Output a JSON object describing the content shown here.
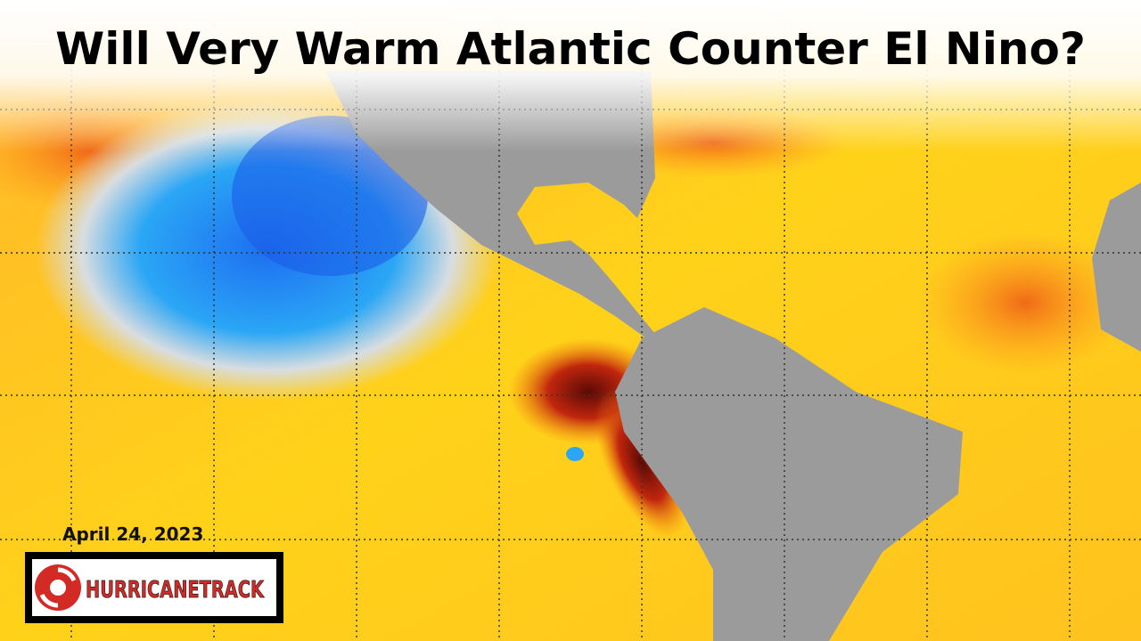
{
  "title": "Will Very Warm Atlantic Counter El Nino?",
  "date": "April 24, 2023",
  "logo": {
    "text": "HURRICANETRACK"
  }
}
